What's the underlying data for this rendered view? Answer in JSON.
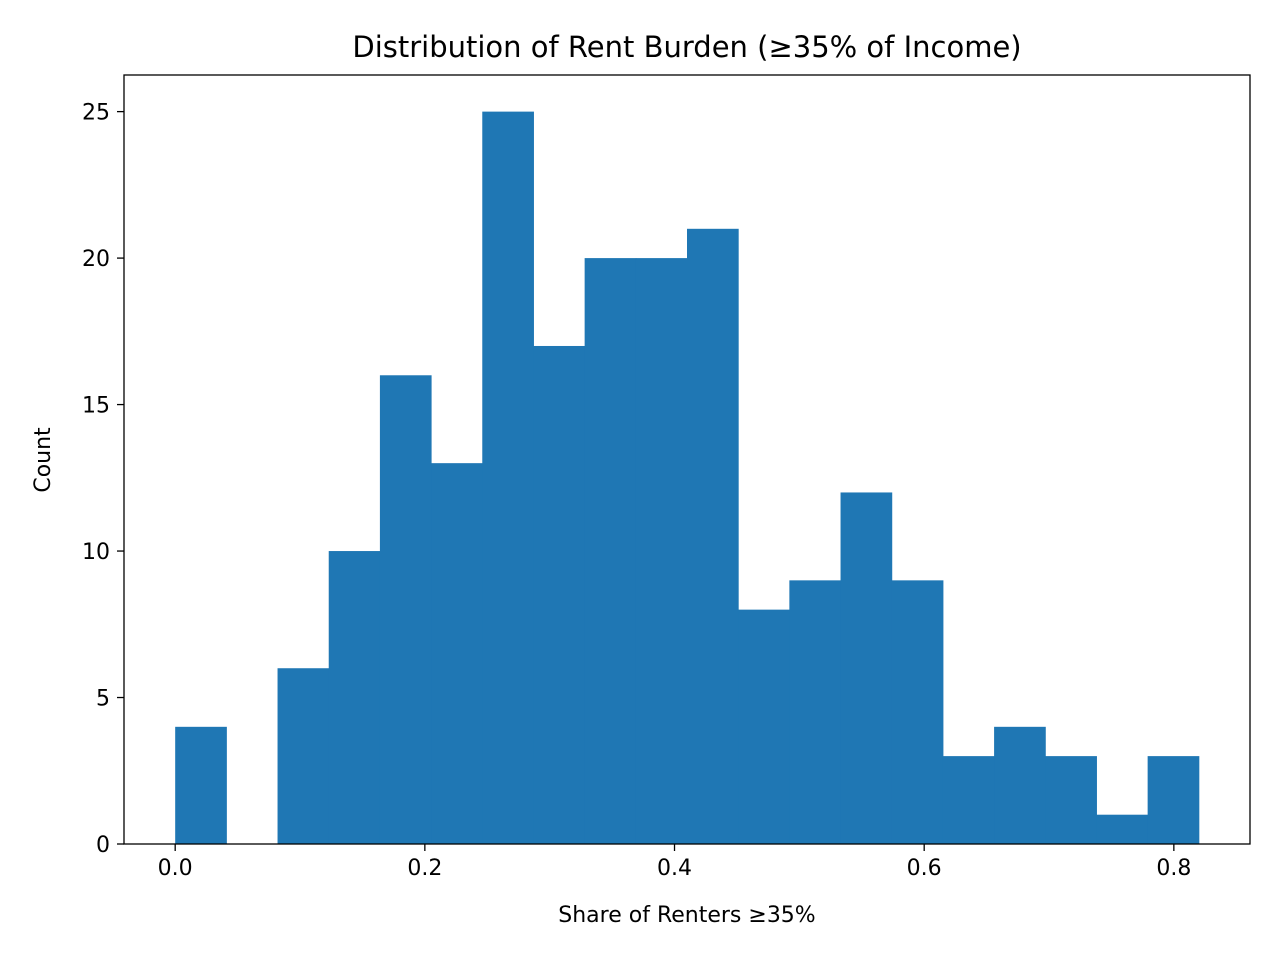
{
  "chart_data": {
    "type": "bar",
    "title": "Distribution of Rent Burden (≥35% of Income)",
    "xlabel": "Share of Renters ≥35%",
    "ylabel": "Count",
    "bin_edges": [
      0.0,
      0.041,
      0.082,
      0.123,
      0.164,
      0.205,
      0.246,
      0.287,
      0.328,
      0.369,
      0.41,
      0.451,
      0.492,
      0.533,
      0.574,
      0.615,
      0.656,
      0.697,
      0.738,
      0.779,
      0.82
    ],
    "counts": [
      4,
      0,
      6,
      10,
      16,
      13,
      25,
      17,
      20,
      20,
      21,
      8,
      9,
      12,
      9,
      3,
      4,
      3,
      1,
      3
    ],
    "xlim": [
      -0.041,
      0.861
    ],
    "ylim": [
      0,
      26.25
    ],
    "xticks": [
      0.0,
      0.2,
      0.4,
      0.6,
      0.8
    ],
    "xtick_labels": [
      "0.0",
      "0.2",
      "0.4",
      "0.6",
      "0.8"
    ],
    "yticks": [
      0,
      5,
      10,
      15,
      20,
      25
    ],
    "ytick_labels": [
      "0",
      "5",
      "10",
      "15",
      "20",
      "25"
    ],
    "bar_color": "#1f77b4",
    "grid": false,
    "legend": false
  }
}
